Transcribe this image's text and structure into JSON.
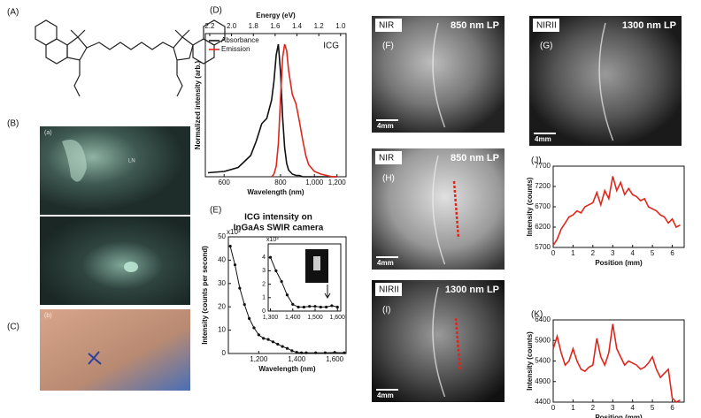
{
  "panel_labels": {
    "A": "(A)",
    "B": "(B)",
    "C": "(C)"
  },
  "photos": {
    "lymph": {
      "tag": "(a)",
      "note": "LN"
    },
    "hand": {
      "tag": "(b)"
    }
  },
  "fluorescence_images": [
    {
      "label": "(F)",
      "band": "NIR",
      "filter": "850 nm LP",
      "scale": "4mm"
    },
    {
      "label": "(G)",
      "band": "NIRII",
      "filter": "1300 nm LP",
      "scale": "4mm"
    },
    {
      "label": "(H)",
      "band": "NIR",
      "filter": "850 nm LP",
      "scale": "4mm"
    },
    {
      "label": "(I)",
      "band": "NIRII",
      "filter": "1300 nm LP",
      "scale": "4mm"
    }
  ],
  "chart_data": [
    {
      "type": "line",
      "panel": "(D)",
      "x_label": "Wavelength (nm)",
      "x2_label": "Energy (eV)",
      "y_label": "Normalized intensity (arb.)",
      "annotation": "ICG",
      "x": [
        560,
        600,
        640,
        680,
        700,
        720,
        740,
        760,
        770,
        780,
        790,
        800,
        810,
        820,
        830,
        840,
        860,
        880,
        900,
        920,
        940,
        960,
        1000,
        1050,
        1100,
        1150,
        1200
      ],
      "x_scale": "reciprocal",
      "xlim": [
        554,
        1305
      ],
      "xticks": [
        600,
        800,
        {
          "value": 1000,
          "label": "1,000"
        },
        {
          "value": 1200,
          "label": "1,200"
        }
      ],
      "x2lim": [
        2.24,
        0.95
      ],
      "x2ticks": [
        2.2,
        {
          "value": 2,
          "label": "2.0"
        },
        1.8,
        1.6,
        1.4,
        1.2,
        {
          "value": 1,
          "label": "1.0"
        }
      ],
      "ylim": [
        0,
        1.08
      ],
      "legend": "upper left",
      "series": [
        {
          "name": "Absorbance",
          "color": "#111111",
          "values": [
            0.03,
            0.04,
            0.07,
            0.16,
            0.27,
            0.4,
            0.44,
            0.58,
            0.72,
            0.92,
            1.0,
            0.78,
            0.45,
            0.22,
            0.1,
            0.05,
            0.02,
            0.01,
            0.01,
            0,
            0,
            0,
            0,
            0,
            0,
            0,
            0
          ]
        },
        {
          "name": "Emission",
          "color": "#e0261c",
          "values": [
            null,
            null,
            null,
            null,
            null,
            null,
            null,
            0,
            0.02,
            0.08,
            0.25,
            0.6,
            0.9,
            1.0,
            0.95,
            0.8,
            0.62,
            0.55,
            0.42,
            0.28,
            0.16,
            0.09,
            0.04,
            0.02,
            0.01,
            0,
            0
          ]
        }
      ]
    },
    {
      "type": "line",
      "panel": "(E)",
      "title": [
        "ICG intensity on",
        "InGaAs SWIR camera"
      ],
      "x_label": "Wavelength (nm)",
      "y_label": "Intensity (counts per second)",
      "y_multiplier": "x10³",
      "markers": true,
      "x": [
        1050,
        1075,
        1100,
        1125,
        1150,
        1175,
        1200,
        1225,
        1250,
        1275,
        1300,
        1325,
        1350,
        1375,
        1400,
        1425,
        1450,
        1500,
        1550,
        1600,
        1650
      ],
      "xlim": [
        1040,
        1660
      ],
      "xticks": [
        {
          "value": 1200,
          "label": "1,200"
        },
        {
          "value": 1400,
          "label": "1,400"
        },
        {
          "value": 1600,
          "label": "1,600"
        }
      ],
      "ylim": [
        0,
        50
      ],
      "yticks": [
        0,
        10,
        20,
        30,
        40,
        50
      ],
      "series": [
        {
          "color": "#111111",
          "values": [
            46,
            38,
            28,
            21,
            15,
            11,
            8,
            6.5,
            6,
            5,
            4,
            3,
            2.2,
            1.2,
            0.5,
            0.3,
            0.3,
            0.3,
            0.3,
            0.4,
            0.3
          ]
        }
      ]
    },
    {
      "type": "line",
      "y_multiplier": "x10³",
      "markers": true,
      "x": [
        1300,
        1325,
        1350,
        1375,
        1400,
        1425,
        1450,
        1475,
        1500,
        1525,
        1550,
        1575,
        1600
      ],
      "xlim": [
        1290,
        1615
      ],
      "xticks": [
        {
          "value": 1300,
          "label": "1,300"
        },
        {
          "value": 1400,
          "label": "1,400"
        },
        {
          "value": 1500,
          "label": "1,500"
        },
        {
          "value": 1600,
          "label": "1,600"
        }
      ],
      "ylim": [
        0,
        5
      ],
      "yticks": [
        0,
        1,
        2,
        3,
        4
      ],
      "series": [
        {
          "color": "#111111",
          "values": [
            4.0,
            3.0,
            2.2,
            1.2,
            0.5,
            0.3,
            0.3,
            0.35,
            0.35,
            0.3,
            0.3,
            0.4,
            0.3
          ]
        }
      ]
    },
    {
      "type": "line",
      "panel": "(J)",
      "x_label": "Position (mm)",
      "y_label": "Intensity (counts)",
      "x": [
        0,
        0.2,
        0.4,
        0.6,
        0.8,
        1.0,
        1.2,
        1.4,
        1.6,
        1.8,
        2.0,
        2.2,
        2.4,
        2.6,
        2.8,
        3.0,
        3.2,
        3.4,
        3.6,
        3.8,
        4.0,
        4.2,
        4.4,
        4.6,
        4.8,
        5.0,
        5.2,
        5.4,
        5.6,
        5.8,
        6.0,
        6.2,
        6.4
      ],
      "xlim": [
        0,
        6.6
      ],
      "xticks": [
        0,
        1,
        2,
        3,
        4,
        5,
        6
      ],
      "ylim": [
        5700,
        7700
      ],
      "yticks": [
        5700,
        6200,
        6700,
        7200,
        7700
      ],
      "series": [
        {
          "color": "#e0261c",
          "values": [
            5750,
            5900,
            6150,
            6300,
            6450,
            6500,
            6600,
            6550,
            6700,
            6750,
            6800,
            7050,
            6750,
            7100,
            6900,
            7450,
            7100,
            7300,
            7000,
            7150,
            7000,
            6950,
            6850,
            6900,
            6700,
            6650,
            6600,
            6500,
            6450,
            6300,
            6400,
            6200,
            6250
          ]
        }
      ]
    },
    {
      "type": "line",
      "panel": "(K)",
      "x_label": "Position (mm)",
      "y_label": "Intensity (counts)",
      "x": [
        0,
        0.2,
        0.4,
        0.6,
        0.8,
        1.0,
        1.2,
        1.4,
        1.6,
        1.8,
        2.0,
        2.2,
        2.4,
        2.6,
        2.8,
        3.0,
        3.2,
        3.4,
        3.6,
        3.8,
        4.0,
        4.2,
        4.4,
        4.6,
        4.8,
        5.0,
        5.2,
        5.4,
        5.6,
        5.8,
        6.0,
        6.2,
        6.4
      ],
      "xlim": [
        0,
        6.6
      ],
      "xticks": [
        0,
        1,
        2,
        3,
        4,
        5,
        6
      ],
      "ylim": [
        4400,
        6400
      ],
      "yticks": [
        4400,
        4900,
        5400,
        5900,
        6400
      ],
      "series": [
        {
          "color": "#e0261c",
          "values": [
            5700,
            6000,
            5600,
            5300,
            5400,
            5700,
            5400,
            5200,
            5150,
            5250,
            5300,
            5950,
            5500,
            5300,
            5600,
            6300,
            5700,
            5500,
            5300,
            5400,
            5350,
            5300,
            5200,
            5250,
            5350,
            5500,
            5200,
            5000,
            5100,
            5200,
            4500,
            4400,
            4450
          ]
        }
      ]
    }
  ]
}
